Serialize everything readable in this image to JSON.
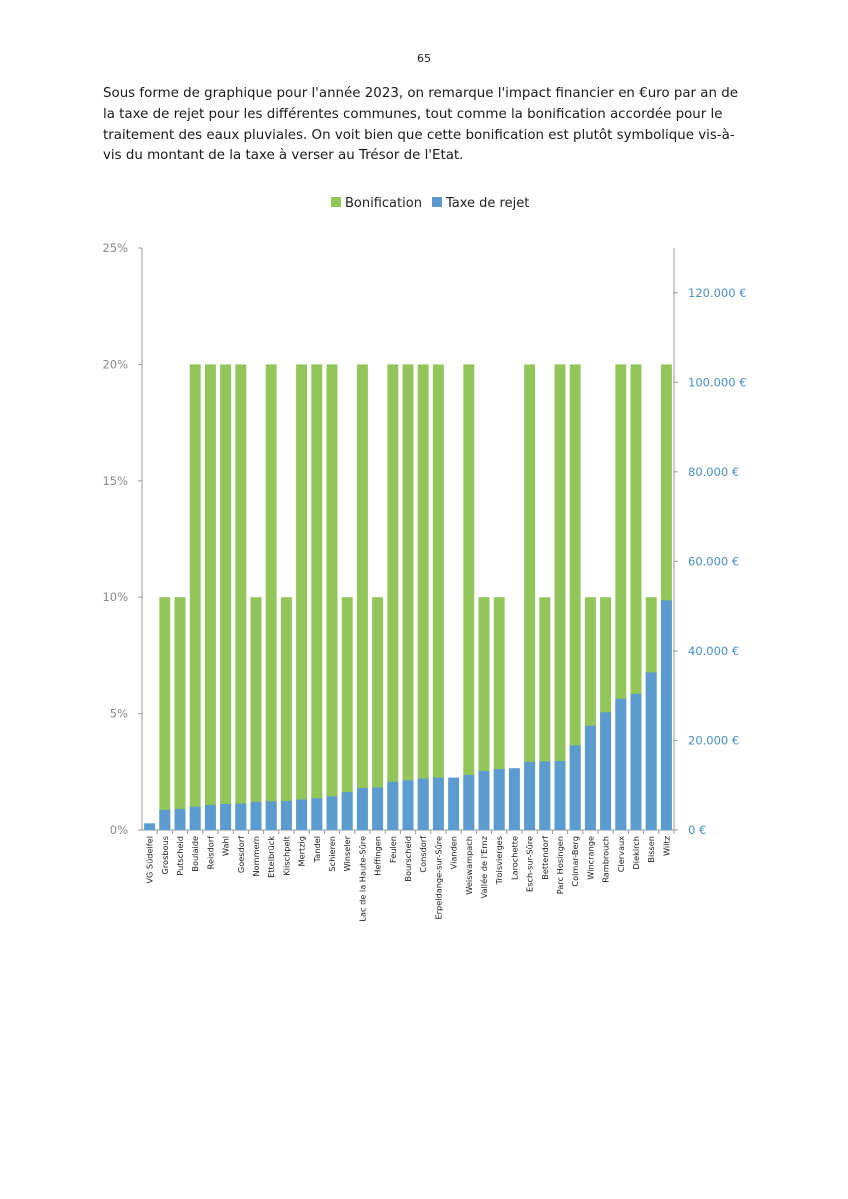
{
  "page": {
    "number": "65"
  },
  "intro_text": "Sous forme de graphique pour l'année 2023, on remarque l'impact financier en €uro par an de la taxe de rejet pour les différentes communes, tout comme la bonification accordée pour le traitement des eaux pluviales. On voit bien que cette bonification est plutôt symbolique vis-à-vis du montant de la taxe à verser au Trésor de l'Etat.",
  "colors": {
    "bonification": "#92c55a",
    "taxe": "#5b9bd0",
    "axis": "#9a9a9a",
    "right_axis_text": "#4a8fc4"
  },
  "chart_data": {
    "type": "bar",
    "title": "",
    "legend": {
      "position": "top",
      "entries": [
        "Bonification",
        "Taxe de rejet"
      ]
    },
    "categories": [
      "VG Südeifel",
      "Grosbous",
      "Putscheid",
      "Boulaide",
      "Reisdorf",
      "Wahl",
      "Goesdorf",
      "Nommern",
      "Ettelbrück",
      "Kiischpelt",
      "Mertzig",
      "Tandel",
      "Schieren",
      "Winseler",
      "Lac de la Haute-Sûre",
      "Heffingen",
      "Feulen",
      "Bourscheid",
      "Consdorf",
      "Erpeldange-sur-Sûre",
      "Vianden",
      "Weiswampach",
      "Vallée de l'Ernz",
      "Troisvierges",
      "Larochette",
      "Esch-sur-Sûre",
      "Bettendorf",
      "Parc Hosingen",
      "Colmar-Berg",
      "Wincrange",
      "Rambrouch",
      "Clervaux",
      "Diekirch",
      "Bissen",
      "Wiltz"
    ],
    "series": [
      {
        "name": "Bonification",
        "axis": "left",
        "unit": "%",
        "values": [
          0,
          10,
          10,
          20,
          20,
          20,
          20,
          10,
          20,
          10,
          20,
          20,
          20,
          10,
          20,
          10,
          20,
          20,
          20,
          20,
          0,
          20,
          10,
          10,
          0,
          20,
          10,
          20,
          20,
          10,
          10,
          20,
          20,
          10,
          20
        ]
      },
      {
        "name": "Taxe de rejet",
        "axis": "right",
        "unit": "€",
        "values": [
          1500,
          4500,
          4700,
          5200,
          5600,
          5800,
          5900,
          6300,
          6400,
          6500,
          6800,
          7100,
          7500,
          8500,
          9400,
          9500,
          10800,
          11100,
          11500,
          11700,
          11700,
          12300,
          13200,
          13600,
          13800,
          15200,
          15300,
          15400,
          18900,
          23300,
          26300,
          29300,
          30400,
          35200,
          51300
        ]
      }
    ],
    "y_left": {
      "range": [
        0,
        25
      ],
      "ticks": [
        "0%",
        "5%",
        "10%",
        "15%",
        "20%",
        "25%"
      ]
    },
    "y_right": {
      "range": [
        0,
        130000
      ],
      "ticks": [
        "0 €",
        "20.000 €",
        "40.000 €",
        "60.000 €",
        "80.000 €",
        "100.000 €",
        "120.000 €"
      ]
    },
    "grid": false
  }
}
